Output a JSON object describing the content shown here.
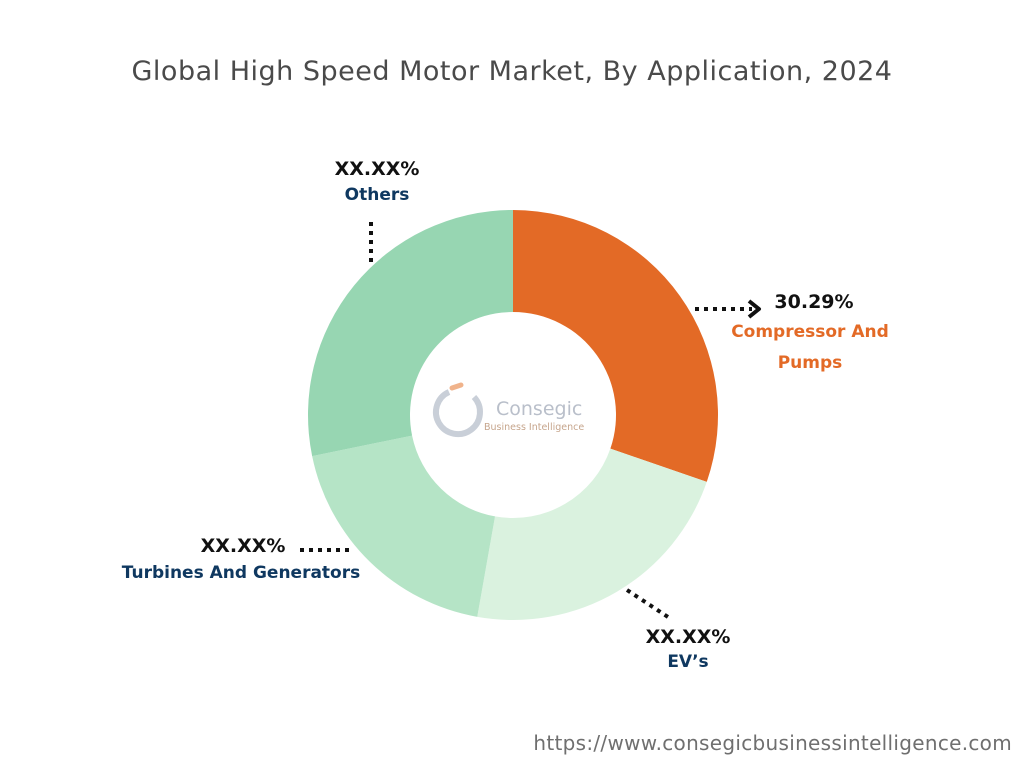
{
  "chart_data": {
    "type": "pie",
    "title": "Global High Speed Motor Market, By Application, 2024",
    "series": [
      {
        "name": "Compressor And Pumps",
        "label_line1": "Compressor And",
        "label_line2": "Pumps",
        "value_label": "30.29%",
        "value": 30.29,
        "color": "#e36a26",
        "label_color": "#e36a26"
      },
      {
        "name": "EV’s",
        "label_line1": "EV’s",
        "value_label": "XX.XX%",
        "value": 22.5,
        "color": "#daf2df",
        "label_color": "#0f3860"
      },
      {
        "name": "Turbines And Generators",
        "label_line1": "Turbines And Generators",
        "value_label": "XX.XX%",
        "value": 19.0,
        "color": "#b5e4c6",
        "label_color": "#0f3860"
      },
      {
        "name": "Others",
        "label_line1": "Others",
        "value_label": "XX.XX%",
        "value": 28.21,
        "color": "#97d6b2",
        "label_color": "#0f3860"
      }
    ]
  },
  "logo": {
    "name": "Consegic",
    "tagline": "Business Intelligence"
  },
  "footer": {
    "url": "https://www.consegicbusinessintelligence.com"
  }
}
